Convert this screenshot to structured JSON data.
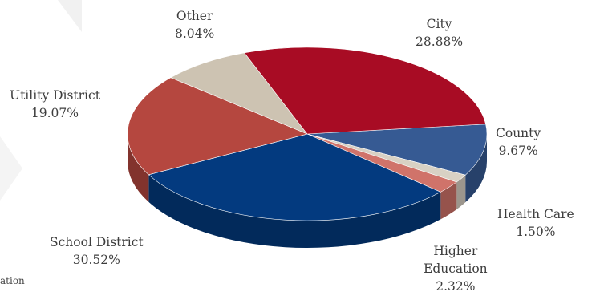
{
  "chart_data": {
    "type": "pie",
    "title": "",
    "style": "3d",
    "slices": [
      {
        "label": "City",
        "value": 28.88,
        "display": "28.88%",
        "color": "#a80c24"
      },
      {
        "label": "County",
        "value": 9.67,
        "display": "9.67%",
        "color": "#365a93"
      },
      {
        "label": "Health Care",
        "value": 1.5,
        "display": "1.50%",
        "color": "#d8d1c4"
      },
      {
        "label": "Higher Education",
        "value": 2.32,
        "display": "2.32%",
        "color": "#d0736a"
      },
      {
        "label": "School District",
        "value": 30.52,
        "display": "30.52%",
        "color": "#033a7f"
      },
      {
        "label": "Utility District",
        "value": 19.07,
        "display": "19.07%",
        "color": "#b5473f"
      },
      {
        "label": "Other",
        "value": 8.04,
        "display": "8.04%",
        "color": "#cdc3b2"
      }
    ]
  },
  "labels": {
    "city": {
      "name": "City",
      "pct": "28.88%"
    },
    "county": {
      "name": "County",
      "pct": "9.67%"
    },
    "health": {
      "name": "Health Care",
      "pct": "1.50%"
    },
    "higher": {
      "line1": "Higher",
      "line2": "Education",
      "pct": "2.32%"
    },
    "school": {
      "name": "School District",
      "pct": "30.52%"
    },
    "utility": {
      "name": "Utility District",
      "pct": "19.07%"
    },
    "other": {
      "name": "Other",
      "pct": "8.04%"
    }
  },
  "edge_text": "ation"
}
